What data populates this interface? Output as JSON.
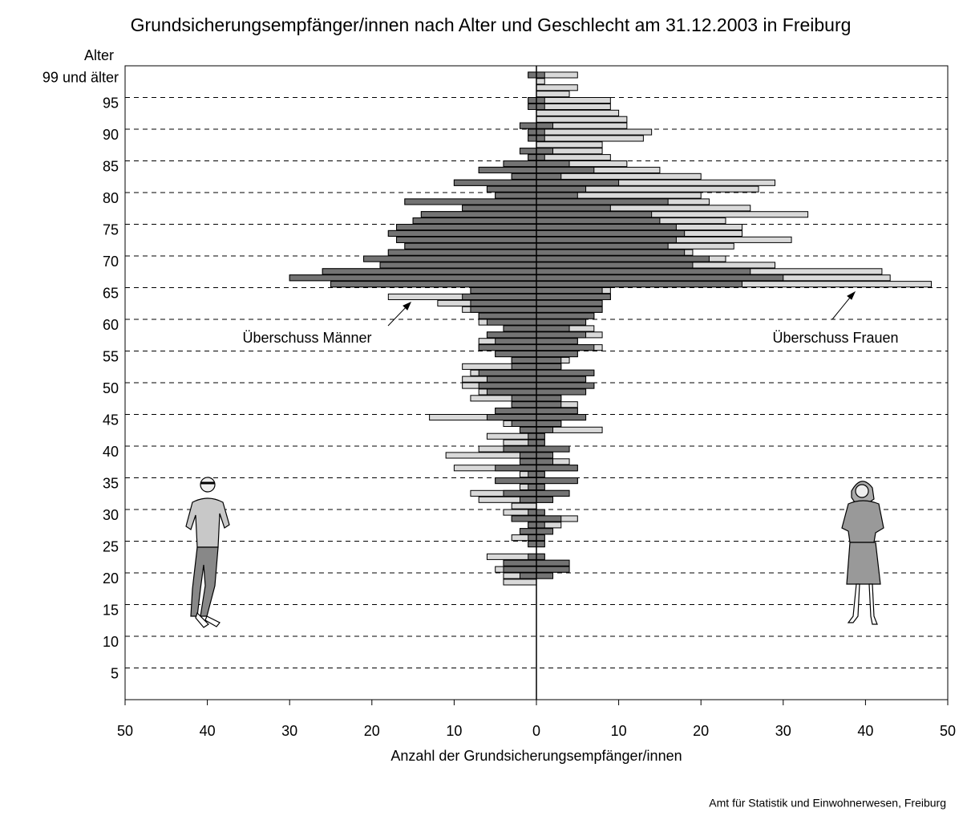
{
  "chart_data": {
    "type": "pyramid",
    "title": "Grundsicherungsempfänger/innen nach Alter und Geschlecht am 31.12.2003 in Freiburg",
    "y_label": "Alter",
    "x_label": "Anzahl der Grundsicherungsempfänger/innen",
    "source": "Amt für Statistik und Einwohnerwesen, Freiburg",
    "annotations": [
      "Überschuss Männer",
      "Überschuss Frauen"
    ],
    "ages": [
      99,
      98,
      97,
      96,
      95,
      94,
      93,
      92,
      91,
      90,
      89,
      88,
      87,
      86,
      85,
      84,
      83,
      82,
      81,
      80,
      79,
      78,
      77,
      76,
      75,
      74,
      73,
      72,
      71,
      70,
      69,
      68,
      67,
      66,
      65,
      64,
      63,
      62,
      61,
      60,
      59,
      58,
      57,
      56,
      55,
      54,
      53,
      52,
      51,
      50,
      49,
      48,
      47,
      46,
      45,
      44,
      43,
      42,
      41,
      40,
      39,
      38,
      37,
      36,
      35,
      34,
      33,
      32,
      31,
      30,
      29,
      28,
      27,
      26,
      25,
      24,
      23,
      22,
      21,
      20,
      19
    ],
    "series": [
      {
        "side": "left",
        "values": [
          1,
          0,
          0,
          0,
          1,
          1,
          0,
          0,
          2,
          1,
          1,
          0,
          2,
          1,
          4,
          7,
          3,
          10,
          6,
          5,
          16,
          9,
          14,
          15,
          17,
          18,
          17,
          16,
          18,
          21,
          19,
          26,
          30,
          25,
          8,
          18,
          12,
          9,
          7,
          7,
          4,
          6,
          7,
          7,
          5,
          3,
          9,
          8,
          9,
          9,
          7,
          8,
          3,
          5,
          13,
          4,
          2,
          6,
          4,
          7,
          11,
          2,
          10,
          2,
          5,
          2,
          8,
          7,
          3,
          4,
          3,
          1,
          2,
          3,
          1,
          0,
          6,
          4,
          5,
          4,
          4
        ]
      },
      {
        "side": "right",
        "values": [
          5,
          1,
          5,
          4,
          9,
          9,
          10,
          11,
          11,
          14,
          13,
          8,
          8,
          9,
          11,
          15,
          20,
          29,
          27,
          20,
          21,
          26,
          33,
          23,
          25,
          25,
          31,
          24,
          19,
          23,
          29,
          42,
          43,
          48,
          9,
          9,
          8,
          8,
          7,
          6,
          7,
          8,
          5,
          8,
          5,
          4,
          3,
          7,
          6,
          7,
          6,
          3,
          5,
          5,
          6,
          3,
          8,
          1,
          1,
          4,
          2,
          4,
          5,
          1,
          5,
          1,
          4,
          2,
          0,
          1,
          5,
          3,
          2,
          1,
          1,
          0,
          1,
          4,
          4,
          2,
          0
        ]
      }
    ],
    "overlap_color": "#737373",
    "surplus_color": "#d9d9d9",
    "xlim": [
      -50,
      50
    ],
    "xticks": [
      {
        "value": -50,
        "label": "50"
      },
      {
        "value": -40,
        "label": "40"
      },
      {
        "value": -30,
        "label": "30"
      },
      {
        "value": -20,
        "label": "20"
      },
      {
        "value": -10,
        "label": "10"
      },
      0,
      10,
      20,
      30,
      40,
      50
    ],
    "ylim": [
      0,
      100
    ],
    "yticks": [
      5,
      10,
      15,
      20,
      25,
      30,
      35,
      40,
      45,
      50,
      55,
      60,
      65,
      70,
      75,
      80,
      85,
      90,
      95,
      {
        "value": 99,
        "label": "99 und älter"
      }
    ],
    "grid": true
  }
}
